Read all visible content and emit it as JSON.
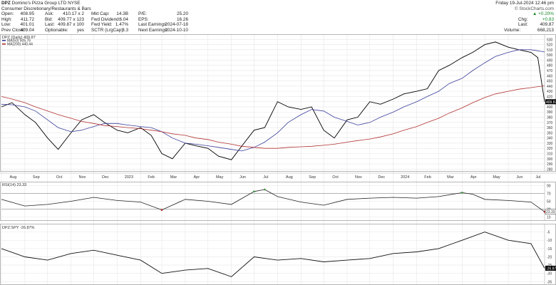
{
  "header": {
    "symbol": "DPZ",
    "company": "Domino's Pizza Group LTD",
    "exchange": "NYSE",
    "sector": "Consumer Discretionary/Restaurants & Bars",
    "quote_rows": [
      [
        {
          "k": "Open:",
          "v": "408.95"
        },
        {
          "k": "Ask:",
          "v": "410.17 x 2"
        },
        {
          "k": "Mkt Cap:",
          "v": "14.3B"
        },
        {
          "k": "P/E:",
          "v": "25.20"
        }
      ],
      [
        {
          "k": "High:",
          "v": "411.72"
        },
        {
          "k": "Bid:",
          "v": "409.77 x 123"
        },
        {
          "k": "Fwd Dividend:",
          "v": "6.04"
        },
        {
          "k": "EPS:",
          "v": "16.26"
        }
      ],
      [
        {
          "k": "Low:",
          "v": "401.01"
        },
        {
          "k": "Last:",
          "v": "409.87 x 100"
        },
        {
          "k": "Fwd Yield:",
          "v": "1.47%"
        },
        {
          "k": "Last Earnings:",
          "v": "2024-07-18"
        }
      ],
      [
        {
          "k": "Prev Close:",
          "v": "409.04"
        },
        {
          "k": "Optionable:",
          "v": "yes"
        },
        {
          "k": "SCTR (LrgCap):",
          "v": "3.3"
        },
        {
          "k": "Next Earnings:",
          "v": "2024-10-10"
        }
      ]
    ],
    "date": "Friday 19-Jul-2024 12:46 pm",
    "copyright": "© StockCharts.com",
    "change_pct": "+0.20%",
    "chg_label": "Chg:",
    "chg_value": "+0.83",
    "last_label": "Last:",
    "last_value": "409.87",
    "volume_label": "Volume:",
    "volume_value": "668,213"
  },
  "colors": {
    "price": "#000000",
    "ma50": "#3a3f9a",
    "ma200": "#b23030",
    "rsi_over": "#4a9a4a",
    "rsi_under": "#b23030",
    "grid": "#e6e6e6",
    "last_box": "#000000"
  },
  "chart_data": [
    {
      "type": "line",
      "panel": "price",
      "title": "DPZ (Daily) 409.87",
      "legend": [
        {
          "name": "MA(50) 505.76",
          "color": "#3a3f9a"
        },
        {
          "name": "MA(200) 440.44",
          "color": "#b23030"
        }
      ],
      "x": [
        "2022-08-01",
        "2022-08-15",
        "2022-09-01",
        "2022-09-15",
        "2022-10-01",
        "2022-10-15",
        "2022-11-01",
        "2022-11-15",
        "2022-12-01",
        "2022-12-15",
        "2023-01-01",
        "2023-01-15",
        "2023-02-01",
        "2023-02-15",
        "2023-03-01",
        "2023-03-15",
        "2023-04-01",
        "2023-04-15",
        "2023-05-01",
        "2023-05-15",
        "2023-06-01",
        "2023-06-15",
        "2023-07-01",
        "2023-07-15",
        "2023-08-01",
        "2023-08-15",
        "2023-09-01",
        "2023-09-15",
        "2023-10-01",
        "2023-10-15",
        "2023-11-01",
        "2023-11-15",
        "2023-12-01",
        "2023-12-15",
        "2024-01-01",
        "2024-01-15",
        "2024-02-01",
        "2024-02-15",
        "2024-03-01",
        "2024-03-15",
        "2024-04-01",
        "2024-04-15",
        "2024-05-01",
        "2024-05-15",
        "2024-06-01",
        "2024-06-15",
        "2024-07-01",
        "2024-07-10",
        "2024-07-19"
      ],
      "series": [
        {
          "name": "DPZ",
          "values": [
            400,
            408,
            385,
            370,
            340,
            318,
            350,
            375,
            385,
            370,
            355,
            350,
            360,
            345,
            310,
            300,
            330,
            325,
            320,
            305,
            298,
            325,
            355,
            360,
            410,
            400,
            395,
            400,
            355,
            340,
            375,
            380,
            410,
            405,
            415,
            425,
            430,
            435,
            470,
            480,
            495,
            505,
            520,
            525,
            515,
            510,
            505,
            495,
            409.87
          ]
        },
        {
          "name": "MA(50)",
          "values": [
            405,
            404,
            400,
            392,
            375,
            360,
            352,
            355,
            362,
            368,
            368,
            365,
            362,
            360,
            352,
            340,
            330,
            328,
            325,
            322,
            318,
            315,
            322,
            332,
            350,
            370,
            385,
            395,
            392,
            380,
            372,
            365,
            370,
            380,
            390,
            400,
            410,
            420,
            430,
            445,
            455,
            470,
            485,
            497,
            505,
            510,
            510,
            508,
            505.76
          ]
        },
        {
          "name": "MA(200)",
          "values": [
            420,
            415,
            408,
            400,
            392,
            385,
            378,
            372,
            368,
            364,
            362,
            360,
            358,
            355,
            352,
            348,
            345,
            340,
            337,
            332,
            328,
            324,
            322,
            320,
            320,
            322,
            323,
            324,
            326,
            328,
            332,
            335,
            338,
            342,
            348,
            355,
            362,
            370,
            378,
            388,
            398,
            408,
            418,
            425,
            430,
            434,
            437,
            439,
            440.44
          ]
        }
      ],
      "ylim": [
        275,
        540
      ],
      "y_ticks": [
        280,
        290,
        300,
        310,
        320,
        330,
        340,
        350,
        360,
        370,
        380,
        390,
        400,
        410,
        420,
        430,
        440,
        450,
        460,
        470,
        480,
        490,
        500,
        510,
        520,
        530
      ],
      "x_ticks": [
        "Aug",
        "Sep",
        "Oct",
        "Nov",
        "Dec",
        "2023",
        "Feb",
        "Mar",
        "Apr",
        "May",
        "Jun",
        "Jul",
        "Aug",
        "Sep",
        "Oct",
        "Nov",
        "Dec",
        "2024",
        "Feb",
        "Mar",
        "Apr",
        "May",
        "Jun",
        "Jul"
      ],
      "last_value_label": "409.87"
    },
    {
      "type": "line",
      "panel": "rsi",
      "title": "RSI(14) 23.33",
      "x": [
        "2022-08-01",
        "2022-09-01",
        "2022-10-01",
        "2022-11-01",
        "2022-12-01",
        "2023-01-01",
        "2023-02-01",
        "2023-03-01",
        "2023-04-01",
        "2023-05-01",
        "2023-06-01",
        "2023-07-01",
        "2023-07-15",
        "2023-08-01",
        "2023-09-01",
        "2023-10-01",
        "2023-11-01",
        "2023-12-01",
        "2024-01-01",
        "2024-02-01",
        "2024-03-01",
        "2024-04-01",
        "2024-04-15",
        "2024-05-01",
        "2024-06-01",
        "2024-07-01",
        "2024-07-19"
      ],
      "series": [
        {
          "name": "RSI(14)",
          "values": [
            55,
            38,
            42,
            50,
            60,
            52,
            48,
            28,
            55,
            50,
            42,
            75,
            80,
            62,
            48,
            40,
            55,
            58,
            60,
            58,
            62,
            72,
            68,
            55,
            52,
            48,
            23.33
          ]
        }
      ],
      "ylim": [
        0,
        100
      ],
      "y_ticks": [
        10,
        30,
        50,
        70,
        90
      ],
      "levels": [
        70,
        30
      ],
      "last_value_label": "23.33"
    },
    {
      "type": "line",
      "panel": "ratio",
      "title": "DPZ:SPY -26.87%",
      "x": [
        "2022-08-01",
        "2022-09-01",
        "2022-10-01",
        "2022-11-01",
        "2022-12-01",
        "2023-01-01",
        "2023-02-01",
        "2023-03-01",
        "2023-04-01",
        "2023-05-01",
        "2023-06-01",
        "2023-07-01",
        "2023-08-01",
        "2023-09-01",
        "2023-10-01",
        "2023-11-01",
        "2023-12-01",
        "2024-01-01",
        "2024-02-01",
        "2024-03-01",
        "2024-04-01",
        "2024-05-01",
        "2024-06-01",
        "2024-07-01",
        "2024-07-19"
      ],
      "series": [
        {
          "name": "DPZ:SPY",
          "values": [
            -15,
            -20,
            -22,
            -18,
            -16,
            -19,
            -22,
            -30,
            -28,
            -27,
            -32,
            -20,
            -22,
            -21,
            -23,
            -22,
            -21,
            -18,
            -17,
            -15,
            -10,
            -5,
            -10,
            -12,
            -26.87
          ]
        }
      ],
      "ylim": [
        -37,
        0
      ],
      "y_ticks": [
        -35,
        -30,
        -25,
        -20,
        -15,
        -10,
        -5
      ],
      "last_value_label": "-26.87"
    }
  ]
}
